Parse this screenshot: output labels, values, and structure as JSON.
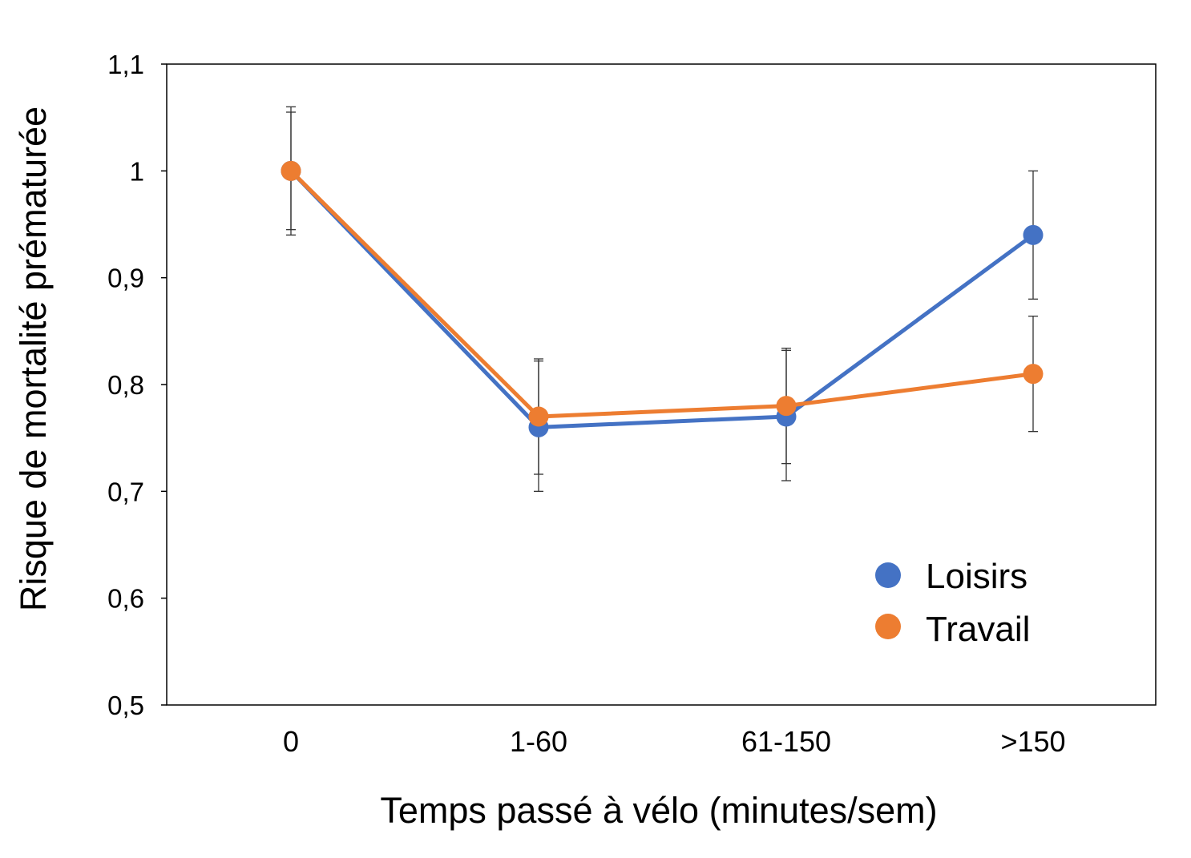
{
  "chart_data": {
    "type": "line",
    "categories": [
      "0",
      "1-60",
      "61-150",
      ">150"
    ],
    "xlabel": "Temps passé à vélo (minutes/sem)",
    "ylabel": "Risque de mortalité prématurée",
    "ylim": [
      0.5,
      1.1
    ],
    "yticks": [
      0.5,
      0.6,
      0.7,
      0.8,
      0.9,
      1.0,
      1.1
    ],
    "ytick_labels": [
      "0,5",
      "0,6",
      "0,7",
      "0,8",
      "0,9",
      "1",
      "1,1"
    ],
    "grid": false,
    "legend_position": "bottom-right",
    "series": [
      {
        "name": "Loisirs",
        "color": "#4472C4",
        "values": [
          1.0,
          0.76,
          0.77,
          0.94
        ],
        "error_low": [
          0.94,
          0.7,
          0.71,
          0.88
        ],
        "error_high": [
          1.06,
          0.822,
          0.832,
          1.0
        ]
      },
      {
        "name": "Travail",
        "color": "#ED7D31",
        "values": [
          1.0,
          0.77,
          0.78,
          0.81
        ],
        "error_low": [
          0.945,
          0.716,
          0.726,
          0.756
        ],
        "error_high": [
          1.055,
          0.824,
          0.834,
          0.864
        ]
      }
    ]
  }
}
